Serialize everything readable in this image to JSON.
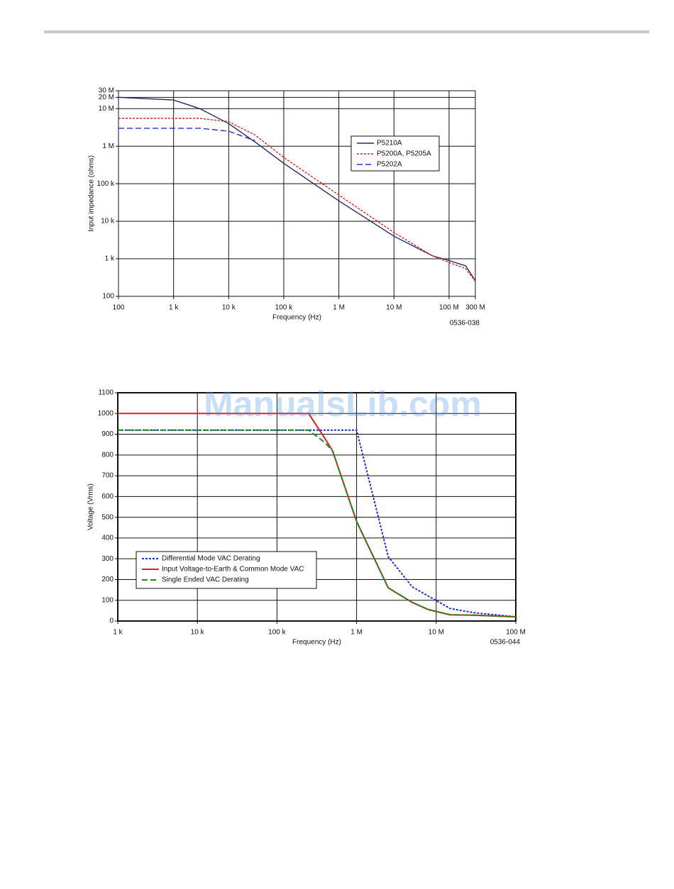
{
  "watermark": "ManualsLib.com",
  "chart_data": [
    {
      "type": "line",
      "xscale": "log",
      "yscale": "log",
      "x_label": "Frequency (Hz)",
      "y_label": "Input impedance (ohms)",
      "annotation": "0536-038",
      "xlim": [
        100,
        300000000
      ],
      "ylim": [
        100,
        30000000
      ],
      "xticks": [
        100,
        {
          "value": 1000,
          "label": "1 k"
        },
        {
          "value": 10000,
          "label": "10 k"
        },
        {
          "value": 100000,
          "label": "100 k"
        },
        {
          "value": 1000000,
          "label": "1 M"
        },
        {
          "value": 10000000,
          "label": "10 M"
        },
        {
          "value": 100000000,
          "label": "100 M"
        },
        {
          "value": 300000000,
          "label": "300 M"
        }
      ],
      "yticks": [
        100,
        {
          "value": 1000,
          "label": "1 k"
        },
        {
          "value": 10000,
          "label": "10 k"
        },
        {
          "value": 100000,
          "label": "100 k"
        },
        {
          "value": 1000000,
          "label": "1 M"
        },
        {
          "value": 10000000,
          "label": "10 M"
        },
        {
          "value": 20000000,
          "label": "20 M"
        },
        {
          "value": 30000000,
          "label": "30 M"
        }
      ],
      "grid": true,
      "legend": "upper right",
      "x": [
        100,
        1000,
        3000,
        10000,
        30000,
        100000,
        1000000,
        10000000,
        50000000,
        100000000,
        200000000,
        300000000
      ],
      "series": [
        {
          "name": "P5210A",
          "color": "#1f2a6b",
          "style": "solid",
          "values": [
            20000000,
            17000000,
            10000000,
            4000000,
            1300000,
            350000,
            35000,
            4000,
            1200,
            900,
            650,
            260
          ]
        },
        {
          "name": "P5200A, P5205A",
          "color": "#e02020",
          "style": "dotted",
          "values": [
            5500000,
            5500000,
            5500000,
            4500000,
            2000000,
            500000,
            50000,
            5000,
            1200,
            800,
            550,
            250
          ]
        },
        {
          "name": "P5202A",
          "color": "#2030d0",
          "style": "dashed",
          "values": [
            3000000,
            3000000,
            3000000,
            2500000,
            1400000,
            null,
            null,
            null,
            null,
            null,
            null,
            null
          ]
        }
      ]
    },
    {
      "type": "line",
      "xscale": "log",
      "yscale": "linear",
      "x_label": "Frequency  (Hz)",
      "y_label": "Voltage (Vrms)",
      "annotation": "0536-044",
      "xlim": [
        1000,
        100000000
      ],
      "ylim": [
        0,
        1100
      ],
      "xticks": [
        {
          "value": 1000,
          "label": "1 k"
        },
        {
          "value": 10000,
          "label": "10 k"
        },
        {
          "value": 100000,
          "label": "100 k"
        },
        {
          "value": 1000000,
          "label": "1 M"
        },
        {
          "value": 10000000,
          "label": "10 M"
        },
        {
          "value": 100000000,
          "label": "100 M"
        }
      ],
      "yticks": [
        0,
        100,
        200,
        300,
        400,
        500,
        600,
        700,
        800,
        900,
        1000,
        1100
      ],
      "grid": true,
      "legend": "lower left",
      "x": [
        1000,
        10000,
        100000,
        250000,
        400000,
        500000,
        1000000,
        2500000,
        5000000,
        8000000,
        15000000,
        30000000,
        100000000
      ],
      "series": [
        {
          "name": "Differential Mode VAC Derating",
          "color": "#1a2fd8",
          "style": "dotted",
          "values": [
            920,
            920,
            920,
            920,
            920,
            920,
            920,
            310,
            165,
            120,
            60,
            40,
            20
          ]
        },
        {
          "name": "Input Voltage-to-Earth & Common Mode VAC",
          "color": "#e02020",
          "style": "solid",
          "values": [
            1000,
            1000,
            1000,
            1000,
            880,
            820,
            480,
            160,
            90,
            55,
            30,
            28,
            20
          ]
        },
        {
          "name": "Single Ended VAC Derating",
          "color": "#1a8a1a",
          "style": "dashed",
          "values": [
            920,
            920,
            920,
            920,
            860,
            820,
            480,
            160,
            90,
            55,
            30,
            28,
            20
          ]
        }
      ]
    }
  ]
}
